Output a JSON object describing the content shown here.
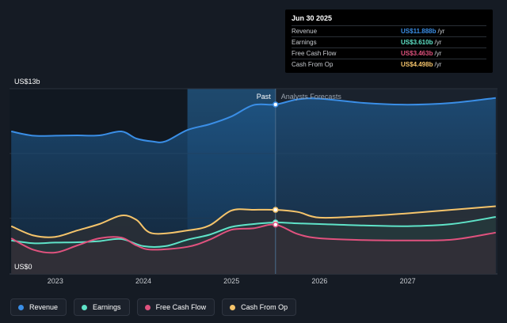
{
  "chart_data": {
    "type": "area",
    "y_axis": {
      "min": 0,
      "max": 13,
      "top_label": "US$13b",
      "bottom_label": "US$0"
    },
    "x_ticks": [
      {
        "label": "2023",
        "x": 2023.0
      },
      {
        "label": "2024",
        "x": 2024.0
      },
      {
        "label": "2025",
        "x": 2025.0
      },
      {
        "label": "2026",
        "x": 2026.0
      },
      {
        "label": "2027",
        "x": 2027.0
      }
    ],
    "x_range": [
      2022.48,
      2028.02
    ],
    "past_label": "Past",
    "forecast_label": "Analysts Forecasts",
    "divider_x": 2025.5,
    "series": [
      {
        "name": "Revenue",
        "color": "#3a8ee6",
        "points": [
          [
            2022.5,
            10.0
          ],
          [
            2022.75,
            9.7
          ],
          [
            2023.0,
            9.7
          ],
          [
            2023.25,
            9.72
          ],
          [
            2023.5,
            9.72
          ],
          [
            2023.75,
            10.0
          ],
          [
            2023.92,
            9.5
          ],
          [
            2024.1,
            9.3
          ],
          [
            2024.25,
            9.3
          ],
          [
            2024.5,
            10.1
          ],
          [
            2024.75,
            10.5
          ],
          [
            2025.0,
            11.05
          ],
          [
            2025.25,
            11.85
          ],
          [
            2025.5,
            11.888
          ],
          [
            2025.75,
            12.25
          ],
          [
            2026.0,
            12.3
          ],
          [
            2026.5,
            12.0
          ],
          [
            2027.0,
            11.88
          ],
          [
            2027.5,
            12.0
          ],
          [
            2028.0,
            12.35
          ]
        ]
      },
      {
        "name": "Earnings",
        "color": "#5fe3c8",
        "points": [
          [
            2022.5,
            2.35
          ],
          [
            2022.75,
            2.15
          ],
          [
            2023.0,
            2.2
          ],
          [
            2023.25,
            2.22
          ],
          [
            2023.5,
            2.3
          ],
          [
            2023.75,
            2.45
          ],
          [
            2024.0,
            1.95
          ],
          [
            2024.25,
            1.95
          ],
          [
            2024.5,
            2.4
          ],
          [
            2024.75,
            2.75
          ],
          [
            2025.0,
            3.3
          ],
          [
            2025.25,
            3.5
          ],
          [
            2025.5,
            3.61
          ],
          [
            2025.75,
            3.55
          ],
          [
            2026.0,
            3.5
          ],
          [
            2026.5,
            3.4
          ],
          [
            2027.0,
            3.35
          ],
          [
            2027.5,
            3.5
          ],
          [
            2028.0,
            4.0
          ]
        ]
      },
      {
        "name": "Free Cash Flow",
        "color": "#e0527e",
        "points": [
          [
            2022.5,
            2.5
          ],
          [
            2022.75,
            1.7
          ],
          [
            2023.0,
            1.5
          ],
          [
            2023.25,
            2.0
          ],
          [
            2023.5,
            2.5
          ],
          [
            2023.75,
            2.55
          ],
          [
            2023.92,
            2.0
          ],
          [
            2024.1,
            1.7
          ],
          [
            2024.5,
            1.9
          ],
          [
            2024.75,
            2.4
          ],
          [
            2025.0,
            3.1
          ],
          [
            2025.25,
            3.2
          ],
          [
            2025.5,
            3.463
          ],
          [
            2025.75,
            2.8
          ],
          [
            2026.0,
            2.5
          ],
          [
            2026.5,
            2.38
          ],
          [
            2027.0,
            2.35
          ],
          [
            2027.5,
            2.4
          ],
          [
            2028.0,
            2.9
          ]
        ]
      },
      {
        "name": "Cash From Op",
        "color": "#f5c46b",
        "points": [
          [
            2022.5,
            3.35
          ],
          [
            2022.75,
            2.7
          ],
          [
            2023.0,
            2.6
          ],
          [
            2023.25,
            3.05
          ],
          [
            2023.5,
            3.5
          ],
          [
            2023.75,
            4.1
          ],
          [
            2023.92,
            3.8
          ],
          [
            2024.1,
            2.85
          ],
          [
            2024.5,
            3.05
          ],
          [
            2024.75,
            3.4
          ],
          [
            2025.0,
            4.45
          ],
          [
            2025.25,
            4.5
          ],
          [
            2025.5,
            4.498
          ],
          [
            2025.75,
            4.35
          ],
          [
            2026.0,
            3.95
          ],
          [
            2026.5,
            4.05
          ],
          [
            2027.0,
            4.25
          ],
          [
            2027.5,
            4.5
          ],
          [
            2028.0,
            4.75
          ]
        ]
      }
    ]
  },
  "tooltip": {
    "title": "Jun 30 2025",
    "rows": [
      {
        "label": "Revenue",
        "value": "US$11.888b",
        "unit": "/yr",
        "color": "#3a8ee6"
      },
      {
        "label": "Earnings",
        "value": "US$3.610b",
        "unit": "/yr",
        "color": "#5fe3c8"
      },
      {
        "label": "Free Cash Flow",
        "value": "US$3.463b",
        "unit": "/yr",
        "color": "#e0527e"
      },
      {
        "label": "Cash From Op",
        "value": "US$4.498b",
        "unit": "/yr",
        "color": "#f5c46b"
      }
    ]
  },
  "legend": [
    {
      "label": "Revenue",
      "color": "#3a8ee6"
    },
    {
      "label": "Earnings",
      "color": "#5fe3c8"
    },
    {
      "label": "Free Cash Flow",
      "color": "#e0527e"
    },
    {
      "label": "Cash From Op",
      "color": "#f5c46b"
    }
  ]
}
